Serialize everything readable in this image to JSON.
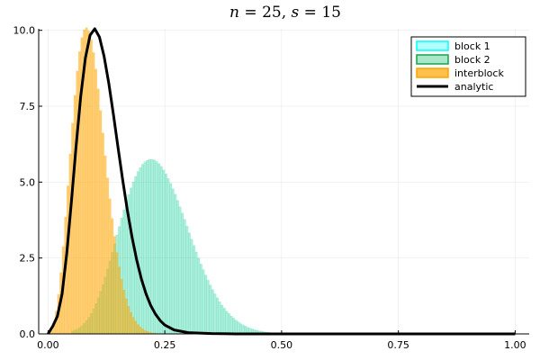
{
  "chart_data": {
    "type": "bar",
    "title": {
      "n_symbol": "n",
      "eq": " = ",
      "n_value": "25",
      "sep": ", ",
      "s_symbol": "s",
      "s_value": "15"
    },
    "xlim": [
      -0.02,
      1.03
    ],
    "ylim": [
      0,
      10.05
    ],
    "xticks": [
      {
        "value": 0.0,
        "label": "0.00"
      },
      {
        "value": 0.25,
        "label": "0.25"
      },
      {
        "value": 0.5,
        "label": "0.50"
      },
      {
        "value": 0.75,
        "label": "0.75"
      },
      {
        "value": 1.0,
        "label": "1.00"
      }
    ],
    "yticks": [
      {
        "value": 0.0,
        "label": "0.0"
      },
      {
        "value": 2.5,
        "label": "2.5"
      },
      {
        "value": 5.0,
        "label": "5.0"
      },
      {
        "value": 7.5,
        "label": "7.5"
      },
      {
        "value": 10.0,
        "label": "10.0"
      }
    ],
    "grid": true,
    "legend_position": "top-right",
    "bin_width": 0.005,
    "series": [
      {
        "name": "block 1",
        "kind": "histogram",
        "fill": "#00ffff",
        "stroke": "#00ffff",
        "opacity": 0.15,
        "bins_start": 0.05,
        "density": [
          0.1,
          0.13,
          0.16,
          0.21,
          0.27,
          0.35,
          0.44,
          0.55,
          0.68,
          0.83,
          1.0,
          1.19,
          1.4,
          1.63,
          1.88,
          2.14,
          2.41,
          2.69,
          2.97,
          3.26,
          3.54,
          3.82,
          4.09,
          4.35,
          4.59,
          4.81,
          5.01,
          5.19,
          5.35,
          5.48,
          5.59,
          5.67,
          5.72,
          5.75,
          5.75,
          5.73,
          5.68,
          5.61,
          5.52,
          5.4,
          5.27,
          5.12,
          4.96,
          4.78,
          4.6,
          4.4,
          4.19,
          3.98,
          3.77,
          3.55,
          3.33,
          3.12,
          2.91,
          2.7,
          2.5,
          2.3,
          2.12,
          1.94,
          1.77,
          1.61,
          1.46,
          1.32,
          1.19,
          1.06,
          0.95,
          0.85,
          0.75,
          0.67,
          0.59,
          0.52,
          0.45,
          0.4,
          0.34,
          0.3,
          0.26,
          0.22,
          0.19,
          0.16,
          0.14,
          0.12,
          0.1,
          0.09,
          0.07,
          0.06,
          0.05,
          0.04,
          0.03,
          0.03,
          0.02,
          0.02
        ]
      },
      {
        "name": "block 2",
        "kind": "histogram",
        "fill": "#3cc98a",
        "stroke": "#16a34a",
        "opacity": 0.3,
        "bins_start": 0.05,
        "density": [
          0.1,
          0.13,
          0.16,
          0.21,
          0.27,
          0.35,
          0.44,
          0.55,
          0.68,
          0.83,
          1.0,
          1.19,
          1.4,
          1.63,
          1.88,
          2.14,
          2.41,
          2.69,
          2.97,
          3.26,
          3.54,
          3.82,
          4.09,
          4.35,
          4.59,
          4.81,
          5.01,
          5.19,
          5.35,
          5.48,
          5.59,
          5.67,
          5.72,
          5.75,
          5.75,
          5.73,
          5.68,
          5.61,
          5.52,
          5.4,
          5.27,
          5.12,
          4.96,
          4.78,
          4.6,
          4.4,
          4.19,
          3.98,
          3.77,
          3.55,
          3.33,
          3.12,
          2.91,
          2.7,
          2.5,
          2.3,
          2.12,
          1.94,
          1.77,
          1.61,
          1.46,
          1.32,
          1.19,
          1.06,
          0.95,
          0.85,
          0.75,
          0.67,
          0.59,
          0.52,
          0.45,
          0.4,
          0.34,
          0.3,
          0.26,
          0.22,
          0.19,
          0.16,
          0.14,
          0.12,
          0.1,
          0.09,
          0.07,
          0.06,
          0.05,
          0.04,
          0.03,
          0.03,
          0.02,
          0.02
        ]
      },
      {
        "name": "interblock",
        "kind": "histogram",
        "fill": "#ffa500",
        "stroke": "#ffa500",
        "opacity": 0.55,
        "bins_start": 0.0,
        "density": [
          0.0,
          0.12,
          0.35,
          0.75,
          1.3,
          2.02,
          2.88,
          3.85,
          4.88,
          5.93,
          6.94,
          7.86,
          8.66,
          9.3,
          9.76,
          10.02,
          10.09,
          9.98,
          9.7,
          9.27,
          8.72,
          8.07,
          7.36,
          6.62,
          5.87,
          5.14,
          4.45,
          3.8,
          3.21,
          2.68,
          2.21,
          1.8,
          1.45,
          1.16,
          0.91,
          0.71,
          0.55,
          0.42,
          0.31,
          0.23,
          0.17,
          0.12,
          0.09,
          0.06,
          0.04,
          0.03,
          0.02,
          0.01
        ]
      },
      {
        "name": "analytic",
        "kind": "line",
        "stroke": "#000000",
        "x": [
          0.0,
          0.01,
          0.02,
          0.03,
          0.04,
          0.05,
          0.06,
          0.07,
          0.08,
          0.09,
          0.1,
          0.11,
          0.12,
          0.13,
          0.14,
          0.15,
          0.16,
          0.17,
          0.18,
          0.19,
          0.2,
          0.21,
          0.22,
          0.23,
          0.24,
          0.25,
          0.27,
          0.3,
          0.35,
          0.4,
          0.5,
          0.6,
          0.7,
          0.8,
          0.9,
          1.0
        ],
        "y": [
          0.0,
          0.25,
          0.58,
          1.31,
          2.64,
          4.35,
          6.17,
          7.83,
          9.09,
          9.84,
          10.05,
          9.78,
          9.14,
          8.26,
          7.22,
          6.12,
          5.05,
          4.05,
          3.17,
          2.42,
          1.8,
          1.31,
          0.93,
          0.65,
          0.44,
          0.29,
          0.13,
          0.04,
          0.01,
          0.0,
          0.0,
          0.0,
          0.0,
          0.0,
          0.0,
          0.0
        ]
      }
    ]
  }
}
